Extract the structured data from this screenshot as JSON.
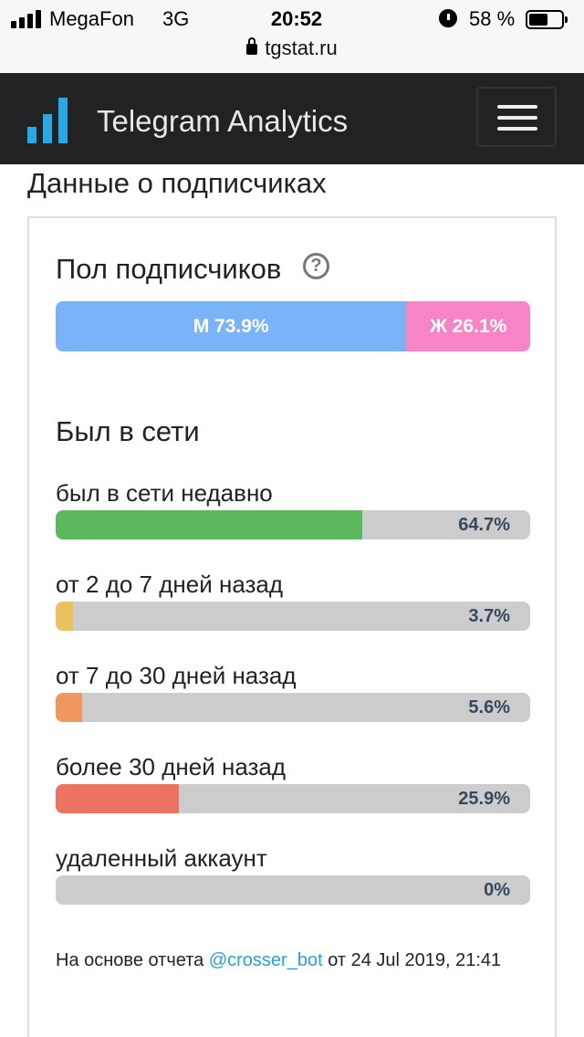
{
  "status_bar": {
    "carrier": "MegaFon",
    "network": "3G",
    "time": "20:52",
    "alarm_icon": "alarm-clock-icon",
    "battery_percent_text": "58 %",
    "battery_level": 0.58
  },
  "url_bar": {
    "url": "tgstat.ru"
  },
  "navbar": {
    "brand": "Telegram Analytics",
    "logo_icon": "bar-chart-logo-icon",
    "accent_color": "#29a8e6",
    "menu_icon": "hamburger-menu-icon"
  },
  "page": {
    "section_title": "Данные о подписчиках"
  },
  "gender": {
    "title": "Пол подписчиков",
    "help_icon": "question-circle-icon",
    "segments": [
      {
        "label": "М 73.9%",
        "value": 73.9,
        "color": "#7ab3f8"
      },
      {
        "label": "Ж 26.1%",
        "value": 26.1,
        "color": "#f784c4"
      }
    ]
  },
  "online": {
    "title": "Был в сети",
    "rows": [
      {
        "label": "был в сети недавно",
        "value": 64.7,
        "value_text": "64.7%",
        "color": "#5cb85c"
      },
      {
        "label": "от 2 до 7 дней назад",
        "value": 3.7,
        "value_text": "3.7%",
        "color": "#ebc15e"
      },
      {
        "label": "от 7 до 30 дней назад",
        "value": 5.6,
        "value_text": "5.6%",
        "color": "#f0965f"
      },
      {
        "label": "более 30 дней назад",
        "value": 25.9,
        "value_text": "25.9%",
        "color": "#eb735f"
      },
      {
        "label": "удаленный аккаунт",
        "value": 0,
        "value_text": "0%",
        "color": "#eb735f"
      }
    ],
    "track_color": "#cccccc"
  },
  "footnote": {
    "prefix": "На основе отчета ",
    "link_text": "@crosser_bot",
    "suffix": " от 24 Jul 2019, 21:41"
  }
}
